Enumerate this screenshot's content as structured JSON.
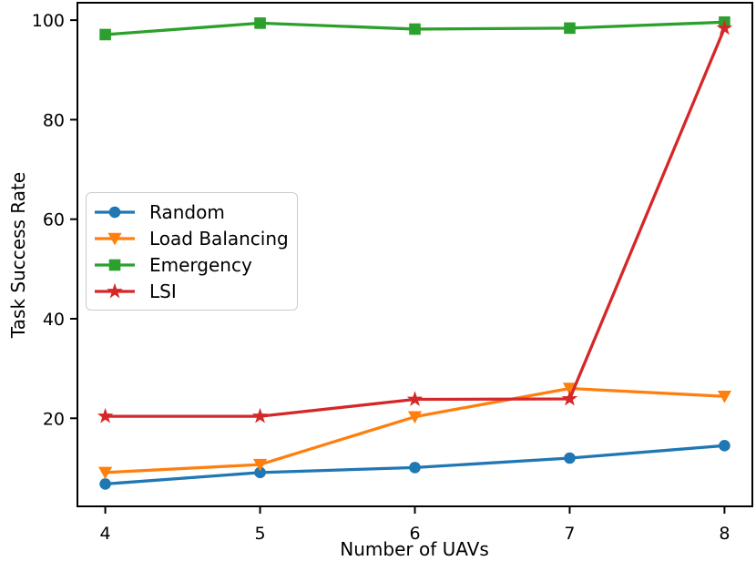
{
  "figure": {
    "title": "",
    "xlabel": "Number of UAVs",
    "ylabel": "Task Success Rate"
  },
  "chart_data": {
    "type": "line",
    "title": "",
    "xlabel": "Number of UAVs",
    "ylabel": "Task Success Rate",
    "x": [
      4,
      5,
      6,
      7,
      8
    ],
    "xticks": [
      4,
      5,
      6,
      7,
      8
    ],
    "yticks": [
      20,
      40,
      60,
      80,
      100
    ],
    "xlim": [
      3.82,
      8.18
    ],
    "ylim": [
      2.3,
      103.5
    ],
    "grid": false,
    "legend_position": "center-left-inside",
    "axis_color": "#000000",
    "background_color": "#ffffff",
    "series": [
      {
        "name": "Random",
        "color": "#1f77b4",
        "marker": "circle",
        "values": [
          6.8,
          9.1,
          10.1,
          12,
          14.5
        ]
      },
      {
        "name": "Load Balancing",
        "color": "#ff7f0e",
        "marker": "triangle-down",
        "values": [
          9.1,
          10.7,
          20.3,
          26,
          24.4
        ]
      },
      {
        "name": "Emergency",
        "color": "#2ca02c",
        "marker": "square",
        "values": [
          97.1,
          99.4,
          98.2,
          98.4,
          99.6
        ]
      },
      {
        "name": "LSI",
        "color": "#d62728",
        "marker": "star",
        "values": [
          20.4,
          20.4,
          23.8,
          23.9,
          98.4
        ]
      }
    ]
  }
}
